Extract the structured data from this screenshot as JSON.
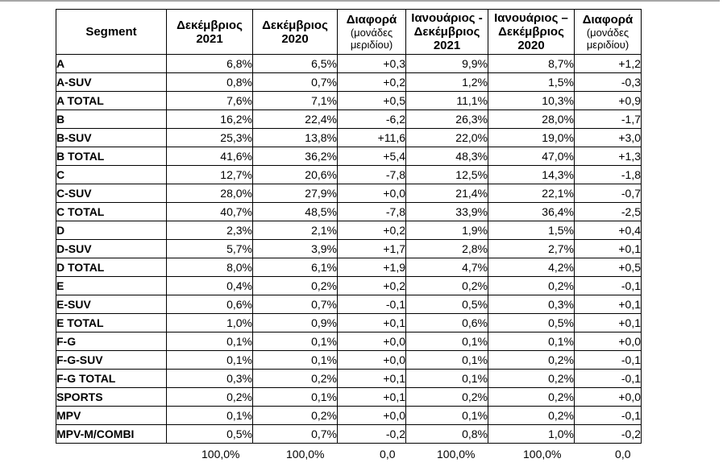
{
  "page": {
    "top_rule_color": "#a6a6a6",
    "background_color": "#ffffff",
    "border_color": "#000000"
  },
  "table": {
    "headers": [
      {
        "title_lines": [
          "Segment"
        ],
        "sub_lines": []
      },
      {
        "title_lines": [
          "Δεκέμβριος",
          "2021"
        ],
        "sub_lines": []
      },
      {
        "title_lines": [
          "Δεκέμβριος",
          "2020"
        ],
        "sub_lines": []
      },
      {
        "title_lines": [
          "Διαφορά"
        ],
        "sub_lines": [
          "(μονάδες",
          "μεριδίου)"
        ]
      },
      {
        "title_lines": [
          "Ιανουάριος -",
          "Δεκέμβριος",
          "2021"
        ],
        "sub_lines": []
      },
      {
        "title_lines": [
          "Ιανουάριος –",
          "Δεκέμβριος",
          "2020"
        ],
        "sub_lines": []
      },
      {
        "title_lines": [
          "Διαφορά"
        ],
        "sub_lines": [
          "(μονάδες",
          "μεριδίου)"
        ]
      }
    ],
    "rows": [
      [
        "A",
        "6,8%",
        "6,5%",
        "+0,3",
        "9,9%",
        "8,7%",
        "+1,2"
      ],
      [
        "A-SUV",
        "0,8%",
        "0,7%",
        "+0,2",
        "1,2%",
        "1,5%",
        "-0,3"
      ],
      [
        "A TOTAL",
        "7,6%",
        "7,1%",
        "+0,5",
        "11,1%",
        "10,3%",
        "+0,9"
      ],
      [
        "B",
        "16,2%",
        "22,4%",
        "-6,2",
        "26,3%",
        "28,0%",
        "-1,7"
      ],
      [
        "B-SUV",
        "25,3%",
        "13,8%",
        "+11,6",
        "22,0%",
        "19,0%",
        "+3,0"
      ],
      [
        "B TOTAL",
        "41,6%",
        "36,2%",
        "+5,4",
        "48,3%",
        "47,0%",
        "+1,3"
      ],
      [
        "C",
        "12,7%",
        "20,6%",
        "-7,8",
        "12,5%",
        "14,3%",
        "-1,8"
      ],
      [
        "C-SUV",
        "28,0%",
        "27,9%",
        "+0,0",
        "21,4%",
        "22,1%",
        "-0,7"
      ],
      [
        "C TOTAL",
        "40,7%",
        "48,5%",
        "-7,8",
        "33,9%",
        "36,4%",
        "-2,5"
      ],
      [
        "D",
        "2,3%",
        "2,1%",
        "+0,2",
        "1,9%",
        "1,5%",
        "+0,4"
      ],
      [
        "D-SUV",
        "5,7%",
        "3,9%",
        "+1,7",
        "2,8%",
        "2,7%",
        "+0,1"
      ],
      [
        "D TOTAL",
        "8,0%",
        "6,1%",
        "+1,9",
        "4,7%",
        "4,2%",
        "+0,5"
      ],
      [
        "E",
        "0,4%",
        "0,2%",
        "+0,2",
        "0,2%",
        "0,2%",
        "-0,1"
      ],
      [
        "E-SUV",
        "0,6%",
        "0,7%",
        "-0,1",
        "0,5%",
        "0,3%",
        "+0,1"
      ],
      [
        "E TOTAL",
        "1,0%",
        "0,9%",
        "+0,1",
        "0,6%",
        "0,5%",
        "+0,1"
      ],
      [
        "F-G",
        "0,1%",
        "0,1%",
        "+0,0",
        "0,1%",
        "0,1%",
        "+0,0"
      ],
      [
        "F-G-SUV",
        "0,1%",
        "0,1%",
        "+0,0",
        "0,1%",
        "0,2%",
        "-0,1"
      ],
      [
        "F-G TOTAL",
        "0,3%",
        "0,2%",
        "+0,1",
        "0,1%",
        "0,2%",
        "-0,1"
      ],
      [
        "SPORTS",
        "0,2%",
        "0,1%",
        "+0,1",
        "0,2%",
        "0,2%",
        "+0,0"
      ],
      [
        "MPV",
        "0,1%",
        "0,2%",
        "+0,0",
        "0,1%",
        "0,2%",
        "-0,1"
      ],
      [
        "MPV-M/COMBI",
        "0,5%",
        "0,7%",
        "-0,2",
        "0,8%",
        "1,0%",
        "-0,2"
      ]
    ],
    "totals": [
      "",
      "100,0%",
      "100,0%",
      "0,0",
      "100,0%",
      "100,0%",
      "0,0"
    ]
  }
}
